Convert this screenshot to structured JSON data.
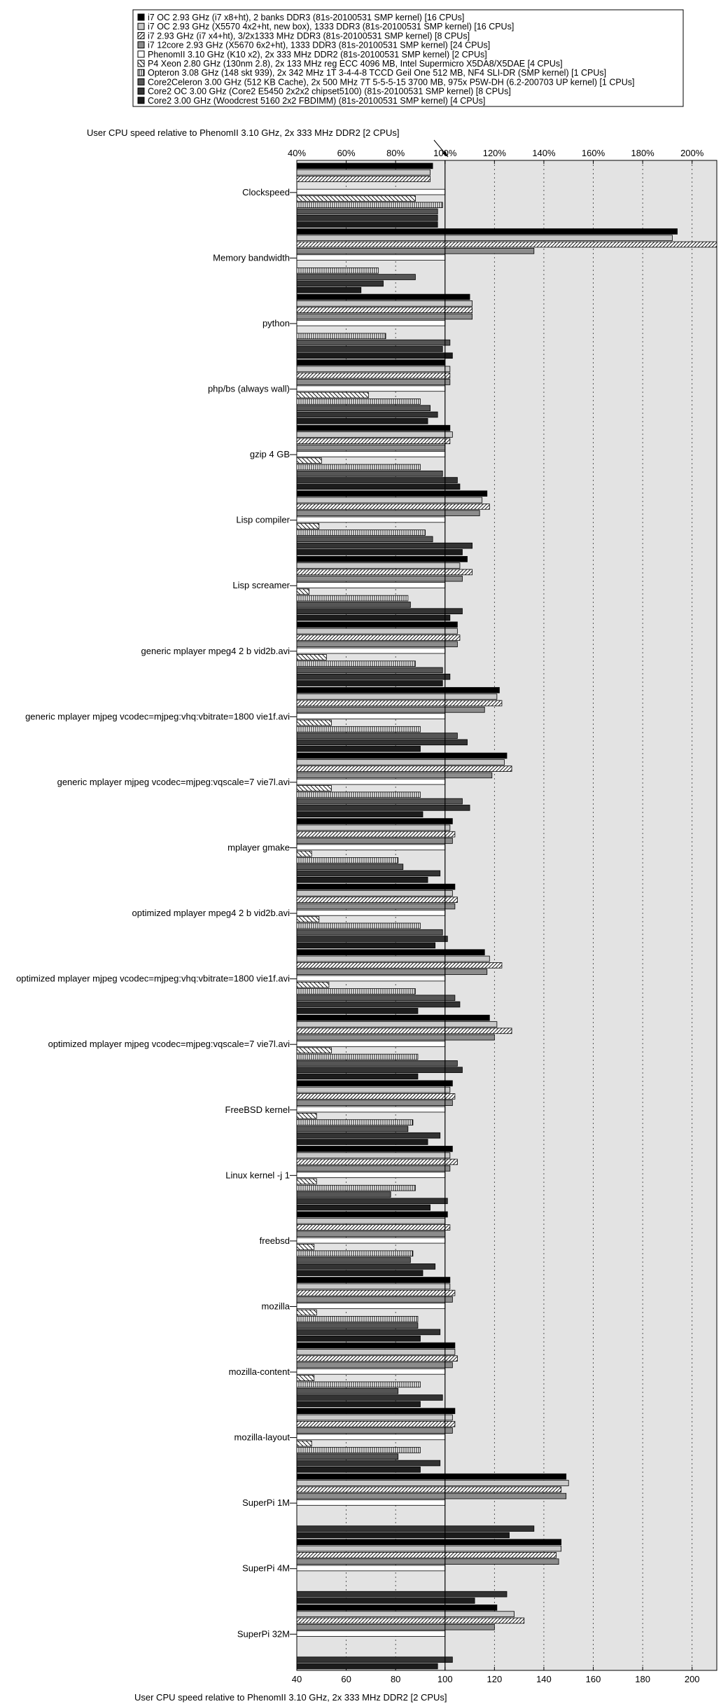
{
  "chart_data": {
    "type": "bar",
    "orientation": "horizontal",
    "xlabel_top": "User CPU speed relative to PhenomII 3.10 GHz, 2x 333 MHz DDR2 [2 CPUs]",
    "xlabel_bottom": "User CPU speed relative to PhenomII 3.10 GHz, 2x 333 MHz DDR2 [2 CPUs]",
    "x_ticks_top": [
      "40%",
      "60%",
      "80%",
      "100%",
      "120%",
      "140%",
      "160%",
      "180%",
      "200%"
    ],
    "x_ticks_bottom": [
      "40",
      "60",
      "80",
      "100",
      "120",
      "140",
      "160",
      "180",
      "200"
    ],
    "x_tick_values": [
      40,
      60,
      80,
      100,
      120,
      140,
      160,
      180,
      200
    ],
    "xlim": [
      40,
      210
    ],
    "reference": 100,
    "grid": "vertical dotted",
    "legend_position": "top",
    "series": [
      {
        "name": "i7 OC 2.93 GHz (i7 x8+ht), 2 banks DDR3 (81s-20100531 SMP kernel) [16 CPUs]",
        "pattern": "solid-black"
      },
      {
        "name": "i7 OC 2.93 GHz (X5570 4x2+ht, new box), 1333 DDR3 (81s-20100531 SMP kernel) [16 CPUs]",
        "pattern": "light-gray"
      },
      {
        "name": "i7 2.93 GHz (i7 x4+ht), 3/2x1333  MHz DDR3 (81s-20100531 SMP kernel) [8 CPUs]",
        "pattern": "diagonal"
      },
      {
        "name": "i7 12core 2.93 GHz (X5670 6x2+ht), 1333 DDR3 (81s-20100531 SMP kernel) [24 CPUs]",
        "pattern": "gray"
      },
      {
        "name": "PhenomII 3.10 GHz (K10 x2), 2x 333 MHz DDR2 (81s-20100531 SMP kernel) [2 CPUs]",
        "pattern": "white"
      },
      {
        "name": "P4 Xeon 2.80 GHz (130nm 2.8), 2x 133 MHz reg ECC 4096 MB, Intel Supermicro X5DA8/X5DAE [4 CPUs]",
        "pattern": "diagonal-back"
      },
      {
        "name": "Opteron 3.08 GHz (148 skt 939), 2x 342 MHz 1T 3-4-4-8 TCCD Geil One 512 MB, NF4 SLI-DR (SMP kernel) [1 CPUs]",
        "pattern": "vertical-lines"
      },
      {
        "name": "Core2Celeron 3.00 GHz (512 KB Cache), 2x 500 MHz 7T 5-5-5-15 3700 MB, 975x P5W-DH (6.2-200703 UP kernel) [1 CPUs]",
        "pattern": "dark-gray"
      },
      {
        "name": "Core2 OC 3.00 GHz (Core2 E5450 2x2x2 chipset5100) (81s-20100531 SMP kernel) [8 CPUs]",
        "pattern": "darker-gray"
      },
      {
        "name": "Core2 3.00 GHz (Woodcrest 5160 2x2 FBDIMM) (81s-20100531 SMP kernel) [4 CPUs]",
        "pattern": "near-black"
      }
    ],
    "categories": [
      {
        "name": "Clockspeed",
        "values": [
          95,
          94,
          94,
          null,
          100,
          88,
          99,
          97,
          97,
          97
        ]
      },
      {
        "name": "Memory bandwidth",
        "values": [
          194,
          192,
          210,
          136,
          100,
          null,
          73,
          88,
          75,
          66
        ]
      },
      {
        "name": "python",
        "values": [
          110,
          111,
          111,
          111,
          100,
          null,
          76,
          102,
          99,
          103
        ]
      },
      {
        "name": "php/bs (always wall)",
        "values": [
          100,
          102,
          102,
          102,
          100,
          69,
          90,
          94,
          97,
          93
        ]
      },
      {
        "name": "gzip 4 GB",
        "values": [
          102,
          103,
          102,
          100,
          100,
          50,
          90,
          99,
          105,
          106
        ]
      },
      {
        "name": "Lisp compiler",
        "values": [
          117,
          115,
          118,
          114,
          100,
          49,
          92,
          95,
          111,
          107
        ]
      },
      {
        "name": "Lisp screamer",
        "values": [
          109,
          106,
          111,
          107,
          100,
          45,
          85,
          86,
          107,
          102
        ]
      },
      {
        "name": "generic mplayer mpeg4 2 b vid2b.avi",
        "values": [
          105,
          105,
          106,
          105,
          100,
          52,
          88,
          99,
          102,
          99
        ]
      },
      {
        "name": "generic mplayer mjpeg vcodec=mjpeg:vhq:vbitrate=1800 vie1f.avi",
        "values": [
          122,
          121,
          123,
          116,
          100,
          54,
          90,
          105,
          109,
          90
        ]
      },
      {
        "name": "generic mplayer mjpeg vcodec=mjpeg:vqscale=7 vie7l.avi",
        "values": [
          125,
          124,
          127,
          119,
          100,
          54,
          90,
          107,
          110,
          91
        ]
      },
      {
        "name": "mplayer gmake",
        "values": [
          103,
          102,
          104,
          103,
          100,
          46,
          81,
          83,
          98,
          93
        ]
      },
      {
        "name": "optimized mplayer mpeg4 2 b vid2b.avi",
        "values": [
          104,
          103,
          105,
          104,
          100,
          49,
          90,
          99,
          101,
          96
        ]
      },
      {
        "name": "optimized mplayer mjpeg vcodec=mjpeg:vhq:vbitrate=1800 vie1f.avi",
        "values": [
          116,
          118,
          123,
          117,
          100,
          53,
          88,
          104,
          106,
          89
        ]
      },
      {
        "name": "optimized mplayer mjpeg vcodec=mjpeg:vqscale=7 vie7l.avi",
        "values": [
          118,
          121,
          127,
          120,
          100,
          54,
          89,
          105,
          107,
          89
        ]
      },
      {
        "name": "FreeBSD kernel",
        "values": [
          103,
          102,
          104,
          103,
          100,
          48,
          87,
          85,
          98,
          93
        ]
      },
      {
        "name": "Linux kernel -j 1",
        "values": [
          103,
          102,
          105,
          102,
          100,
          48,
          88,
          78,
          101,
          94
        ]
      },
      {
        "name": "freebsd",
        "values": [
          101,
          100,
          102,
          100,
          100,
          47,
          87,
          86,
          96,
          91
        ]
      },
      {
        "name": "mozilla",
        "values": [
          102,
          102,
          104,
          103,
          100,
          48,
          89,
          89,
          98,
          90
        ]
      },
      {
        "name": "mozilla-content",
        "values": [
          104,
          104,
          105,
          103,
          100,
          47,
          90,
          81,
          99,
          90
        ]
      },
      {
        "name": "mozilla-layout",
        "values": [
          104,
          103,
          104,
          103,
          100,
          46,
          90,
          81,
          98,
          90
        ]
      },
      {
        "name": "SuperPi 1M",
        "values": [
          149,
          150,
          147,
          149,
          100,
          null,
          null,
          null,
          136,
          126
        ]
      },
      {
        "name": "SuperPi 4M",
        "values": [
          147,
          147,
          145,
          146,
          100,
          null,
          null,
          null,
          125,
          112
        ]
      },
      {
        "name": "SuperPi 32M",
        "values": [
          121,
          128,
          132,
          120,
          100,
          null,
          null,
          null,
          103,
          97
        ]
      }
    ]
  }
}
